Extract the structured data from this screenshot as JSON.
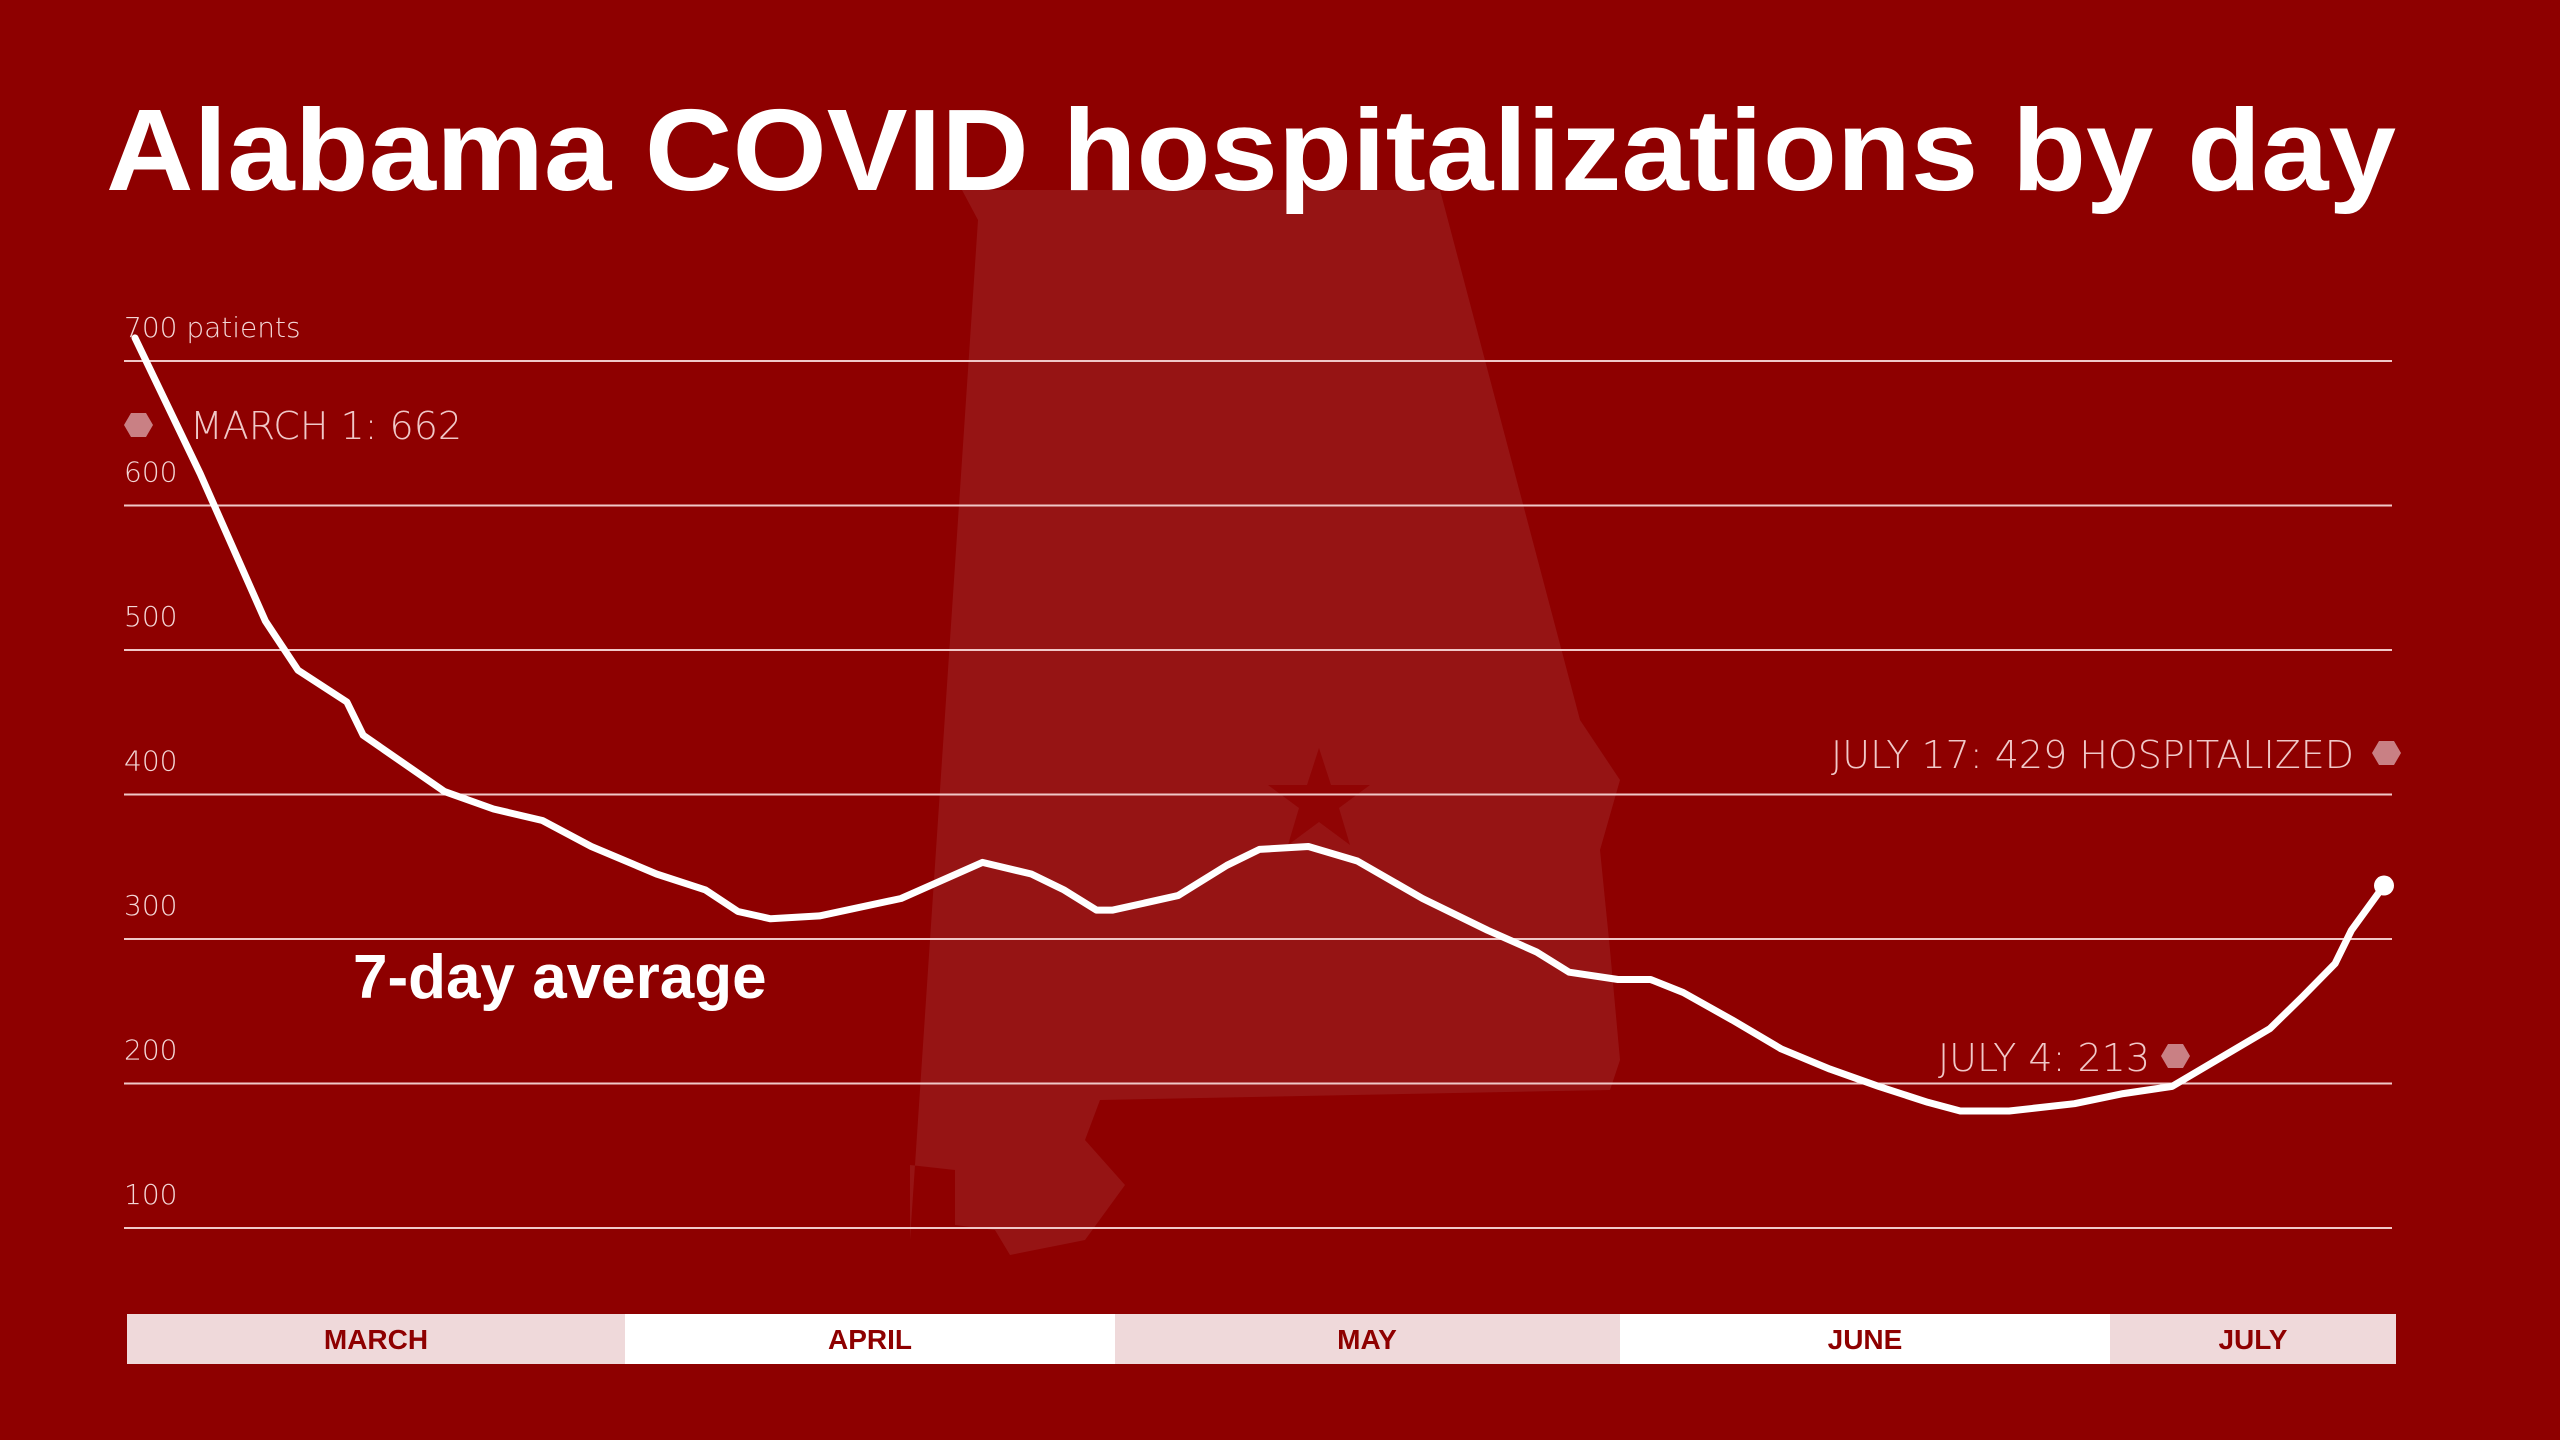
{
  "chart_data": {
    "type": "line",
    "title": "Alabama COVID hospitalizations by day",
    "series_label": "7-day average",
    "ylabel": "patients",
    "ylim": [
      100,
      700
    ],
    "yticks": [
      {
        "value": 700,
        "label": "700 patients"
      },
      {
        "value": 600,
        "label": "600"
      },
      {
        "value": 500,
        "label": "500"
      },
      {
        "value": 400,
        "label": "400"
      },
      {
        "value": 300,
        "label": "300"
      },
      {
        "value": 200,
        "label": "200"
      },
      {
        "value": 100,
        "label": "100"
      }
    ],
    "grid": true,
    "months": [
      "MARCH",
      "APRIL",
      "MAY",
      "JUNE",
      "JULY"
    ],
    "x": [
      "03-01",
      "03-05",
      "03-09",
      "03-11",
      "03-14",
      "03-15",
      "03-20",
      "03-23",
      "03-26",
      "03-29",
      "04-02",
      "04-05",
      "04-07",
      "04-09",
      "04-12",
      "04-17",
      "04-22",
      "04-25",
      "04-27",
      "04-29",
      "04-30",
      "05-04",
      "05-07",
      "05-09",
      "05-12",
      "05-15",
      "05-19",
      "05-23",
      "05-26",
      "05-28",
      "05-31",
      "06-02",
      "06-04",
      "06-07",
      "06-10",
      "06-13",
      "06-16",
      "06-19",
      "06-21",
      "06-24",
      "06-28",
      "07-01",
      "07-04",
      "07-07",
      "07-10",
      "07-12",
      "07-14",
      "07-15",
      "07-17"
    ],
    "values": [
      716,
      622,
      520,
      486,
      464,
      441,
      402,
      390,
      382,
      364,
      345,
      334,
      319,
      314,
      316,
      328,
      353,
      345,
      334,
      320,
      320,
      330,
      351,
      362,
      364,
      354,
      328,
      306,
      291,
      277,
      272,
      272,
      263,
      244,
      224,
      210,
      198,
      187,
      181,
      181,
      186,
      193,
      198,
      218,
      238,
      260,
      283,
      306,
      337
    ],
    "annotations": [
      {
        "label": "MARCH 1: 662"
      },
      {
        "label": "JULY 17: 429 HOSPITALIZED"
      },
      {
        "label": "JULY 4: 213"
      }
    ],
    "colors": {
      "background": "#8e0000",
      "line": "#ffffff",
      "marker": "#c98084",
      "band_light": "#efd9da",
      "band_white": "#ffffff"
    }
  }
}
